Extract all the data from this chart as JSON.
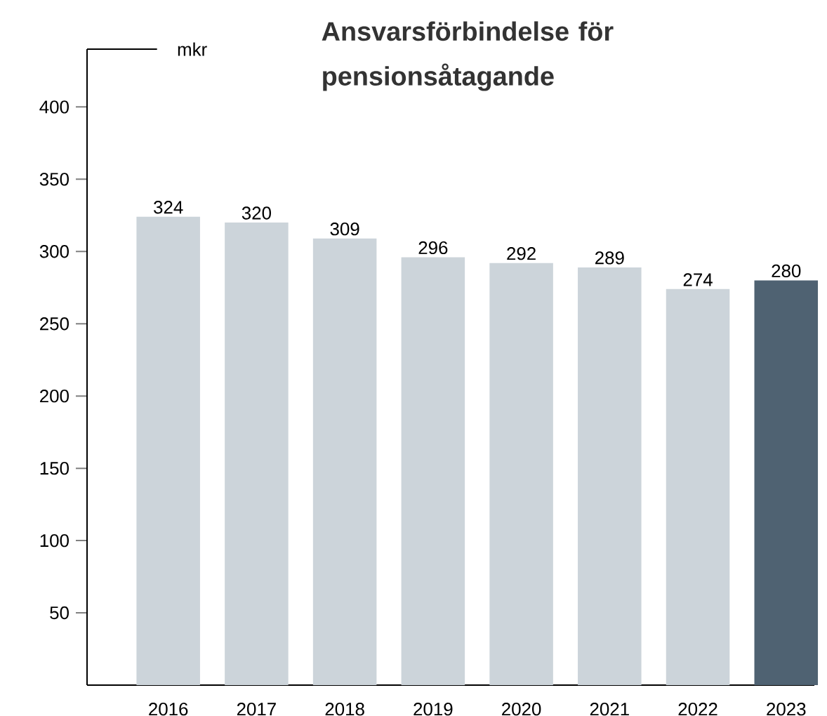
{
  "chart_data": {
    "type": "bar",
    "title": "Ansvarsförbindelse för pensionsåtagande",
    "ylabel": "mkr",
    "categories": [
      "2016",
      "2017",
      "2018",
      "2019",
      "2020",
      "2021",
      "2022",
      "2023"
    ],
    "values": [
      324,
      320,
      309,
      296,
      292,
      289,
      274,
      280
    ],
    "colors": [
      "#ccd4da",
      "#ccd4da",
      "#ccd4da",
      "#ccd4da",
      "#ccd4da",
      "#ccd4da",
      "#ccd4da",
      "#4f6272"
    ],
    "ylim": [
      0,
      440
    ],
    "yticks": [
      50,
      100,
      150,
      200,
      250,
      300,
      350,
      400
    ],
    "data_labels": true
  }
}
